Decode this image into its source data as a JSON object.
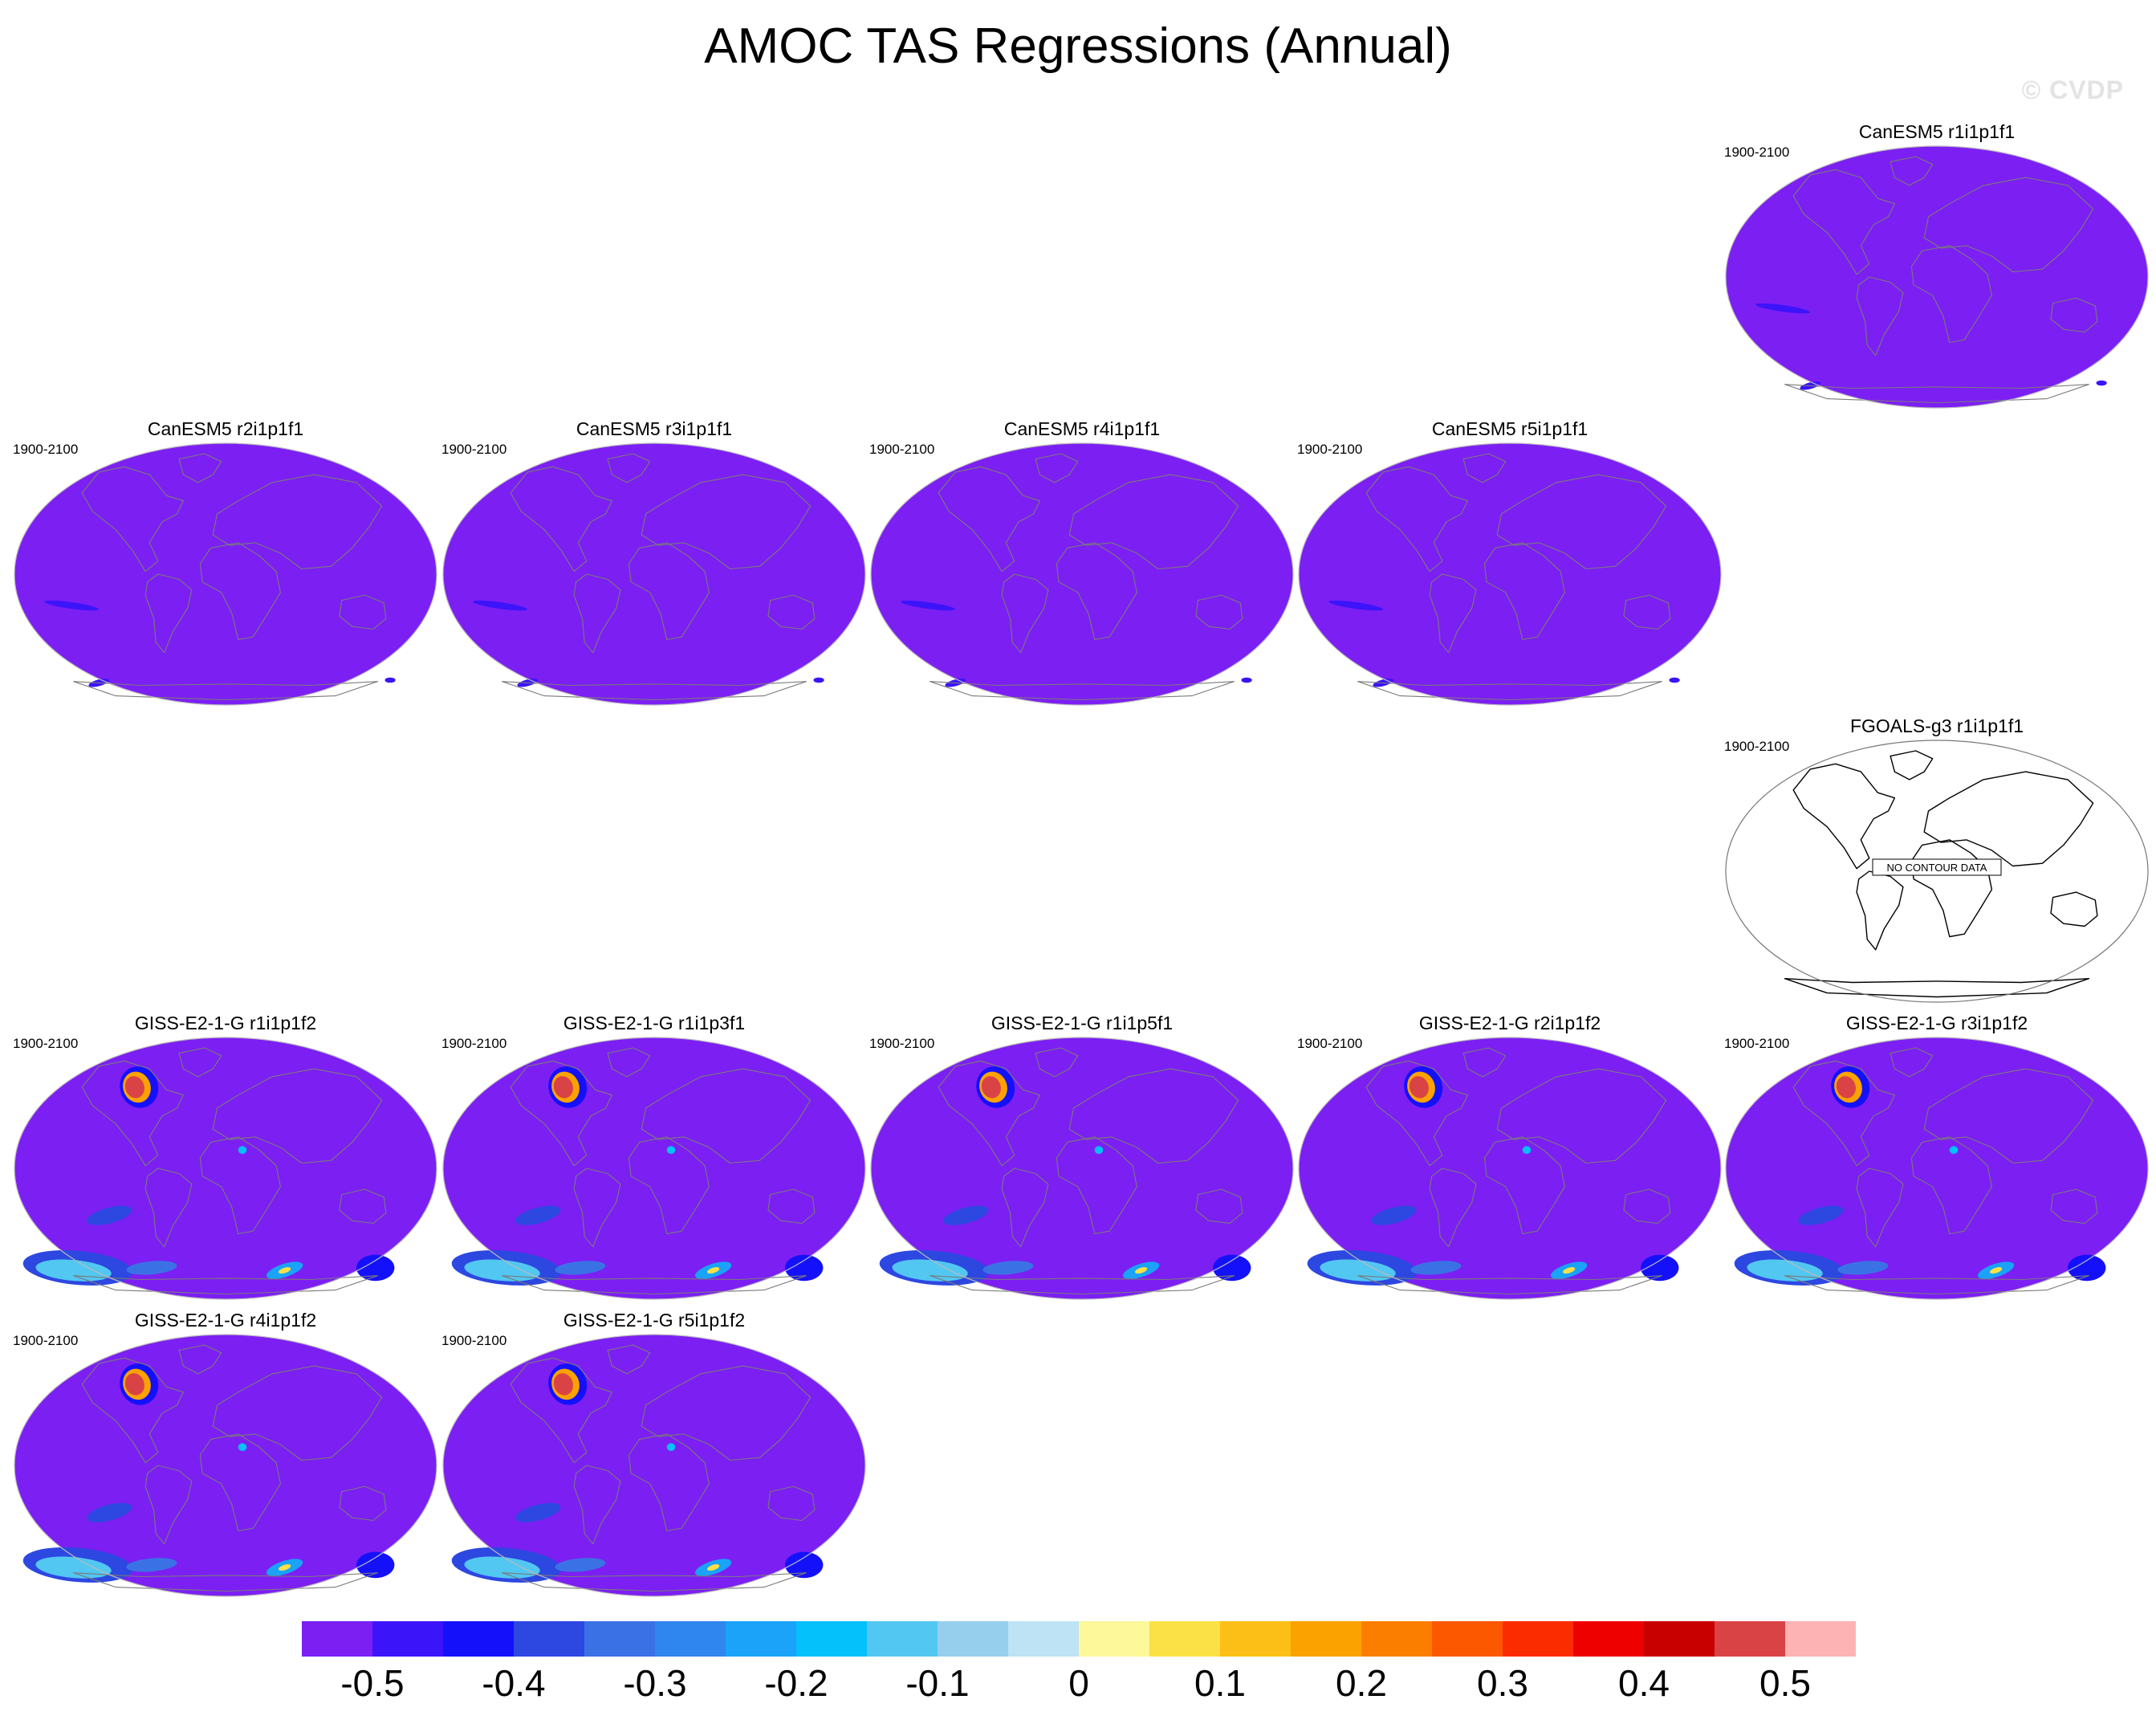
{
  "title": "AMOC TAS Regressions (Annual)",
  "credit": "© CVDP",
  "chart_data": {
    "type": "heatmap",
    "title": "AMOC TAS Regressions (Annual)",
    "projection": "global map",
    "colorbar": {
      "levels": [
        -0.55,
        -0.5,
        -0.45,
        -0.4,
        -0.35,
        -0.3,
        -0.25,
        -0.2,
        -0.15,
        -0.1,
        -0.05,
        0,
        0.05,
        0.1,
        0.15,
        0.2,
        0.25,
        0.3,
        0.35,
        0.4,
        0.45,
        0.5,
        0.55
      ],
      "tick_labels": [
        "-0.5",
        "-0.4",
        "-0.3",
        "-0.2",
        "-0.1",
        "0",
        "0.1",
        "0.2",
        "0.3",
        "0.4",
        "0.5"
      ],
      "colors": [
        "#7c1ff3",
        "#3c14fa",
        "#1411fa",
        "#2d47e1",
        "#3a72e5",
        "#2f86ee",
        "#1aa3f8",
        "#04c0fb",
        "#52c7f2",
        "#96cfee",
        "#bde3f5",
        "#fdf89a",
        "#fce146",
        "#fbbf18",
        "#fba200",
        "#fb7e00",
        "#fb5800",
        "#fb2d00",
        "#ee0000",
        "#c80000",
        "#d94346",
        "#fdb3b4"
      ]
    },
    "panels": [
      {
        "title": "CanESM5 r1i1p1f1",
        "period": "1900-2100",
        "features": "canesm"
      },
      {
        "title": "CanESM5 r2i1p1f1",
        "period": "1900-2100",
        "features": "canesm"
      },
      {
        "title": "CanESM5 r3i1p1f1",
        "period": "1900-2100",
        "features": "canesm"
      },
      {
        "title": "CanESM5 r4i1p1f1",
        "period": "1900-2100",
        "features": "canesm"
      },
      {
        "title": "CanESM5 r5i1p1f1",
        "period": "1900-2100",
        "features": "canesm"
      },
      {
        "title": "FGOALS-g3 r1i1p1f1",
        "period": "1900-2100",
        "features": "nodata",
        "note": "NO CONTOUR DATA"
      },
      {
        "title": "GISS-E2-1-G r1i1p1f2",
        "period": "1900-2100",
        "features": "giss"
      },
      {
        "title": "GISS-E2-1-G r1i1p3f1",
        "period": "1900-2100",
        "features": "giss"
      },
      {
        "title": "GISS-E2-1-G r1i1p5f1",
        "period": "1900-2100",
        "features": "giss"
      },
      {
        "title": "GISS-E2-1-G r2i1p1f2",
        "period": "1900-2100",
        "features": "giss"
      },
      {
        "title": "GISS-E2-1-G r3i1p1f2",
        "period": "1900-2100",
        "features": "giss"
      },
      {
        "title": "GISS-E2-1-G r4i1p1f2",
        "period": "1900-2100",
        "features": "giss"
      },
      {
        "title": "GISS-E2-1-G r5i1p1f2",
        "period": "1900-2100",
        "features": "giss"
      }
    ]
  }
}
